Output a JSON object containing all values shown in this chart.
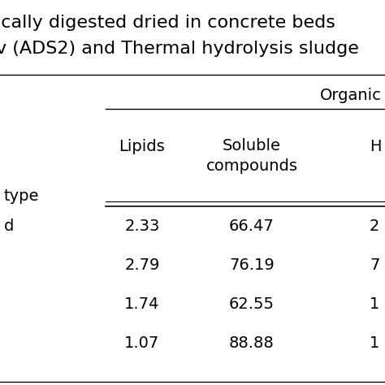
{
  "title_line1": "ically digested dried in concrete beds",
  "title_line2": "v (ADS2) and Thermal hydrolysis sludge",
  "header_top": "Organic",
  "row_label_header": "type",
  "rows": [
    [
      "d",
      "2.33",
      "66.47",
      "2"
    ],
    [
      "",
      "2.79",
      "76.19",
      "7"
    ],
    [
      "",
      "1.74",
      "62.55",
      "1"
    ],
    [
      "",
      "1.07",
      "88.88",
      "1"
    ]
  ],
  "bg_color": "#ffffff",
  "text_color": "#000000",
  "font_size_title": 16,
  "font_size_header": 14,
  "font_size_cell": 14
}
